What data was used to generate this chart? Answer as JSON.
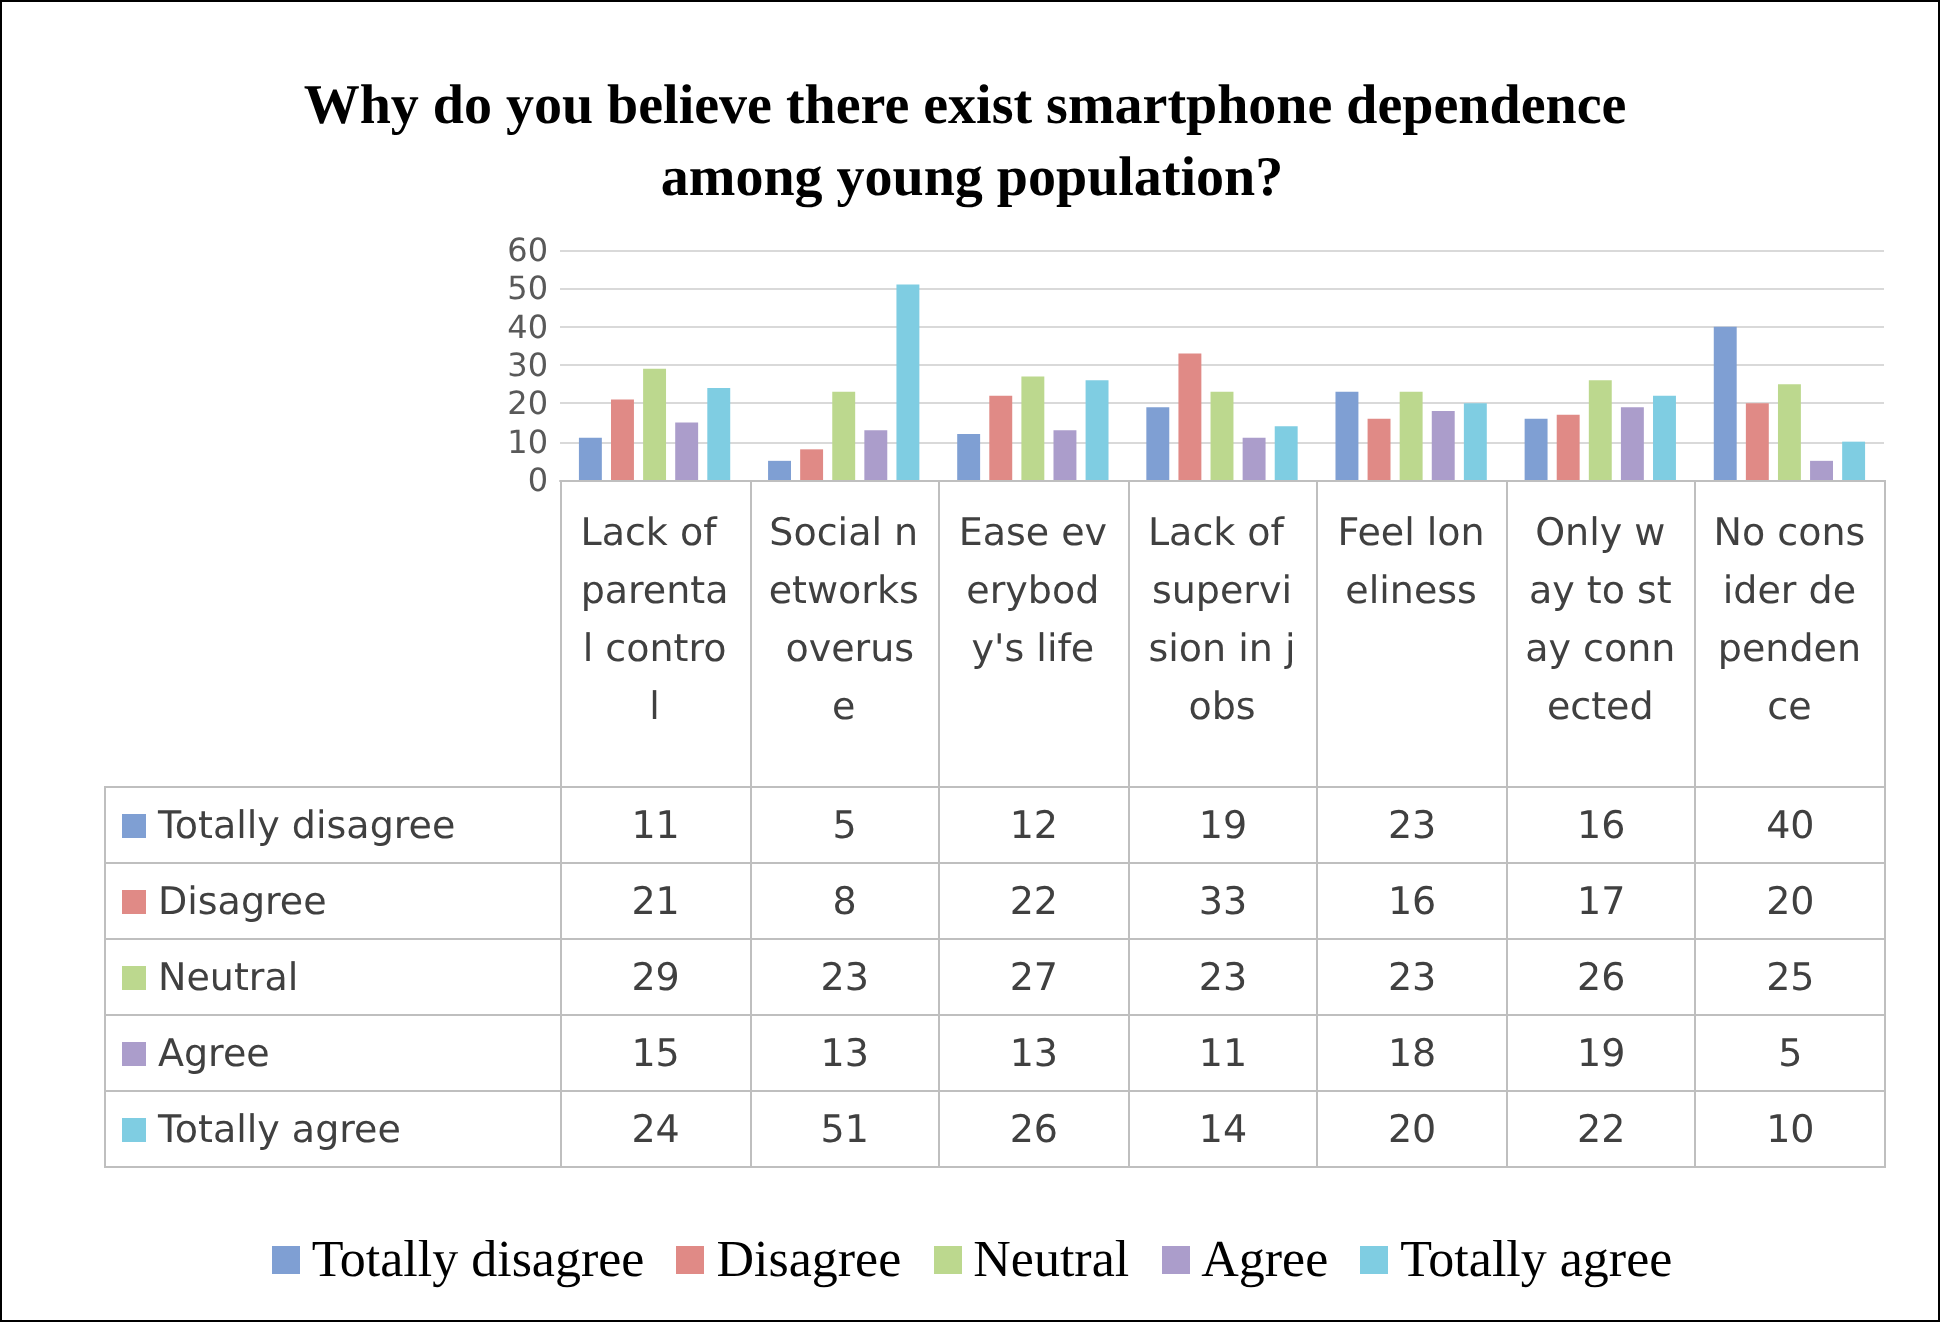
{
  "chart_data": {
    "type": "bar",
    "title": "Why do you believe there exist smartphone dependence among young population?",
    "categories": [
      "Lack of parental control",
      "Social networks overuse",
      "Ease everybody's life",
      "Lack of supervision in jobs",
      "Feel loneliness",
      "Only way to stay connected",
      "No consider dependence"
    ],
    "series": [
      {
        "name": "Totally disagree",
        "color": "#7f9fd3",
        "values": [
          11,
          5,
          12,
          19,
          23,
          16,
          40
        ]
      },
      {
        "name": "Disagree",
        "color": "#e08a86",
        "values": [
          21,
          8,
          22,
          33,
          16,
          17,
          20
        ]
      },
      {
        "name": "Neutral",
        "color": "#bcd88e",
        "values": [
          29,
          23,
          27,
          23,
          23,
          26,
          25
        ]
      },
      {
        "name": "Agree",
        "color": "#ab9dcb",
        "values": [
          15,
          13,
          13,
          11,
          18,
          19,
          5
        ]
      },
      {
        "name": "Totally agree",
        "color": "#7fcde2",
        "values": [
          24,
          51,
          26,
          14,
          20,
          22,
          10
        ]
      }
    ],
    "ylim": [
      0,
      60
    ],
    "yticks": [
      0,
      10,
      20,
      30,
      40,
      50,
      60
    ],
    "grid": "y",
    "legend": "bottom",
    "data_labels": true
  }
}
